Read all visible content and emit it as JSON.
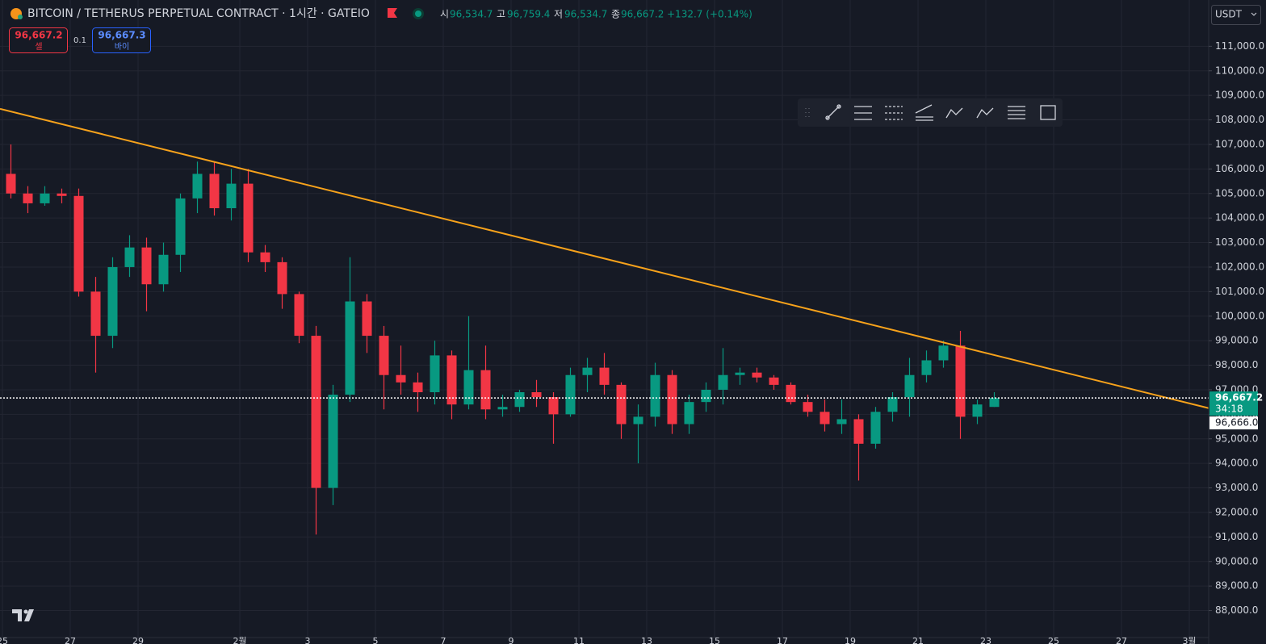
{
  "chart_data": {
    "type": "candlestick",
    "title": "BITCOIN / TETHERUS PERPETUAL CONTRACT · 1시간 · GATEIO",
    "legend": [
      {
        "label": "시",
        "value": "96,534.7"
      },
      {
        "label": "고",
        "value": "96,759.4"
      },
      {
        "label": "저",
        "value": "96,534.7"
      },
      {
        "label": "종",
        "value": "96,667.2"
      }
    ],
    "change": "+132.7 (+0.14%)",
    "sell": {
      "price": "96,667.2",
      "label": "셀"
    },
    "spread": "0.1",
    "buy": {
      "price": "96,667.3",
      "label": "바이"
    },
    "currency": "USDT",
    "up_color": "#089981",
    "down_color": "#f23645",
    "categories": [
      "25",
      null,
      null,
      null,
      "27",
      null,
      null,
      null,
      "29",
      null,
      null,
      null,
      null,
      null,
      "2월",
      null,
      null,
      null,
      "3",
      null,
      null,
      null,
      "5",
      null,
      null,
      null,
      "7",
      null,
      null,
      null,
      "9",
      null,
      null,
      null,
      "11",
      null,
      null,
      null,
      "13",
      null,
      null,
      null,
      "15",
      null,
      null,
      null,
      "17",
      null,
      null,
      null,
      "19",
      null,
      null,
      null,
      "21",
      null,
      null,
      null,
      "23",
      null,
      null,
      null,
      "25",
      null,
      null,
      null,
      "27",
      null,
      null,
      null,
      "3월"
    ],
    "open": [
      105800,
      105000,
      104600,
      105000,
      104900,
      101000,
      99200,
      102000,
      102800,
      101300,
      102500,
      104800,
      105800,
      104400,
      105400,
      102600,
      102200,
      100900,
      99200,
      93000,
      96800,
      100600,
      99200,
      97600,
      97300,
      96900,
      98400,
      96400,
      97800,
      96200,
      96300,
      96900,
      96700,
      96000,
      97600,
      97900,
      97200,
      95600,
      95900,
      97600,
      95600,
      96500,
      97000,
      97600,
      97700,
      97500,
      97200,
      96500,
      96100,
      95600,
      95800,
      94800,
      96100,
      96700,
      97600,
      98200,
      98800,
      95900,
      96300,
      null,
      null,
      null,
      null,
      null,
      null,
      null,
      null,
      null,
      null,
      null,
      null
    ],
    "high": [
      107000,
      105300,
      105300,
      105200,
      105200,
      101600,
      102400,
      103300,
      103200,
      103000,
      105000,
      106300,
      106300,
      106000,
      106000,
      102900,
      102400,
      101000,
      99600,
      97200,
      102400,
      100900,
      99600,
      98800,
      97700,
      99000,
      98600,
      100000,
      98800,
      96800,
      97000,
      97400,
      96900,
      97900,
      98300,
      98500,
      97300,
      96400,
      98100,
      97800,
      96800,
      97300,
      98700,
      97900,
      97900,
      97600,
      97300,
      96800,
      96600,
      96600,
      96000,
      96300,
      96900,
      98300,
      98600,
      99000,
      99400,
      96600,
      96900,
      null,
      null,
      null,
      null,
      null,
      null,
      null,
      null,
      null,
      null,
      null,
      null
    ],
    "low": [
      104800,
      104200,
      104500,
      104600,
      100800,
      97700,
      98700,
      101600,
      100200,
      101000,
      101800,
      104200,
      104100,
      103900,
      102200,
      101800,
      100300,
      98900,
      91100,
      92300,
      96500,
      98500,
      96200,
      96800,
      96100,
      96400,
      95800,
      96200,
      95800,
      95900,
      96100,
      96300,
      94800,
      95900,
      96900,
      96800,
      95000,
      94000,
      95500,
      95200,
      95200,
      96100,
      96400,
      97200,
      97300,
      97000,
      96400,
      95900,
      95300,
      95200,
      93300,
      94600,
      95700,
      95900,
      97300,
      97900,
      95000,
      95600,
      96300,
      null,
      null,
      null,
      null,
      null,
      null,
      null,
      null,
      null,
      null,
      null,
      null
    ],
    "close": [
      105000,
      104600,
      105000,
      104900,
      101000,
      99200,
      102000,
      102800,
      101300,
      102500,
      104800,
      105800,
      104400,
      105400,
      102600,
      102200,
      100900,
      99200,
      93000,
      96800,
      100600,
      99200,
      97600,
      97300,
      96900,
      98400,
      96400,
      97800,
      96200,
      96300,
      96900,
      96700,
      96000,
      97600,
      97900,
      97200,
      95600,
      95900,
      97600,
      95600,
      96500,
      97000,
      97600,
      97700,
      97500,
      97200,
      96500,
      96100,
      95600,
      95800,
      94800,
      96100,
      96700,
      97600,
      98200,
      98800,
      95900,
      96400,
      96667.2,
      null,
      null,
      null,
      null,
      null,
      null,
      null,
      null,
      null,
      null,
      null,
      null
    ],
    "ylim": [
      86900,
      111900
    ],
    "yticks": [
      {
        "value": 88000,
        "label": "88,000.0"
      },
      {
        "value": 89000,
        "label": "89,000.0"
      },
      {
        "value": 90000,
        "label": "90,000.0"
      },
      {
        "value": 91000,
        "label": "91,000.0"
      },
      {
        "value": 92000,
        "label": "92,000.0"
      },
      {
        "value": 93000,
        "label": "93,000.0"
      },
      {
        "value": 94000,
        "label": "94,000.0"
      },
      {
        "value": 95000,
        "label": "95,000.0"
      },
      {
        "value": 96000,
        "label": "96,000.0"
      },
      {
        "value": 97000,
        "label": "97,000.0"
      },
      {
        "value": 98000,
        "label": "98,000.0"
      },
      {
        "value": 99000,
        "label": "99,000.0"
      },
      {
        "value": 100000,
        "label": "100,000.0"
      },
      {
        "value": 101000,
        "label": "101,000.0"
      },
      {
        "value": 102000,
        "label": "102,000.0"
      },
      {
        "value": 103000,
        "label": "103,000.0"
      },
      {
        "value": 104000,
        "label": "104,000.0"
      },
      {
        "value": 105000,
        "label": "105,000.0"
      },
      {
        "value": 106000,
        "label": "106,000.0"
      },
      {
        "value": 107000,
        "label": "107,000.0"
      },
      {
        "value": 108000,
        "label": "108,000.0"
      },
      {
        "value": 109000,
        "label": "109,000.0"
      },
      {
        "value": 110000,
        "label": "110,000.0"
      },
      {
        "value": 111000,
        "label": "111,000.0"
      }
    ],
    "grid": true,
    "trend_line": {
      "color": "#f7a21b",
      "values": [
        108450,
        96250
      ]
    },
    "last_price": {
      "value": 96667.2,
      "label": "96,667.2"
    },
    "countdown": "34:18",
    "crosshair_label": "96,666.0"
  }
}
